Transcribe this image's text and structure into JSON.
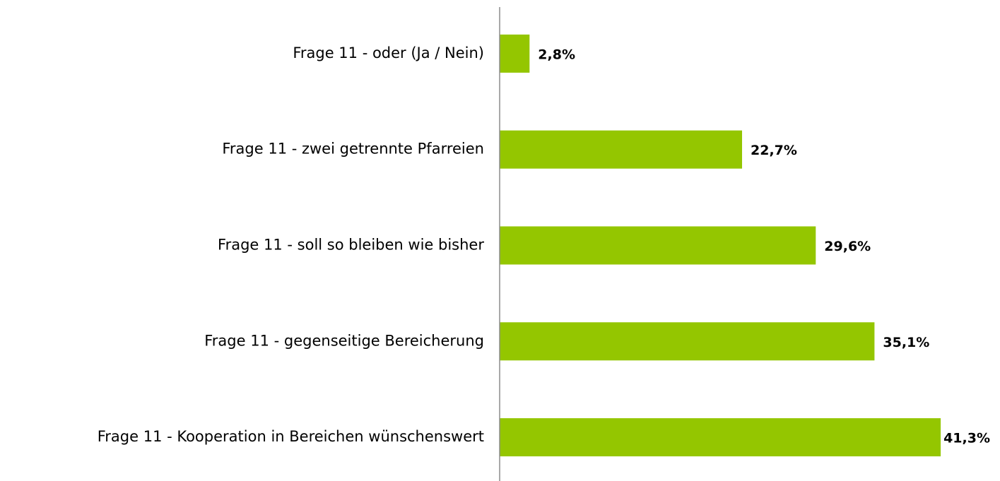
{
  "chart_data": {
    "type": "bar",
    "orientation": "horizontal",
    "categories": [
      "Frage 11 - oder (Ja / Nein)",
      "Frage 11 - zwei getrennte Pfarreien",
      "Frage 11 - soll so bleiben wie bisher",
      "Frage 11 - gegenseitige Bereicherung",
      "Frage 11 - Kooperation in Bereichen wünschenswert"
    ],
    "values": [
      2.8,
      22.7,
      29.6,
      35.1,
      41.3
    ],
    "value_labels": [
      "2,8%",
      "22,7%",
      "29,6%",
      "35,1%",
      "41,3%"
    ],
    "color": "#94c600",
    "xlim": [
      0,
      45
    ]
  }
}
